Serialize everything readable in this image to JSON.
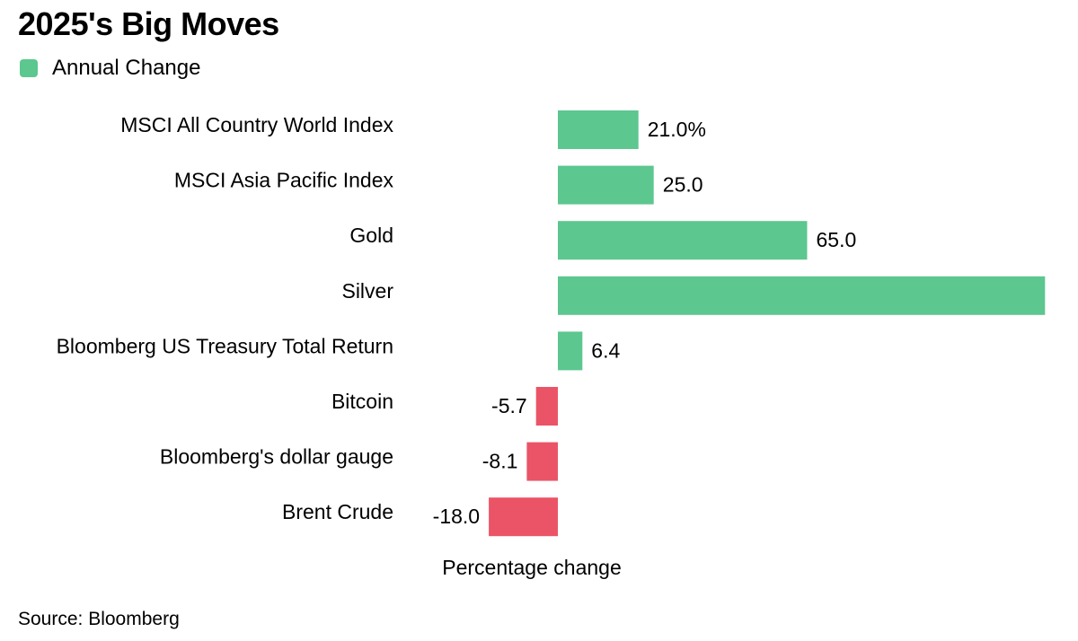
{
  "title": "2025's Big Moves",
  "legend": {
    "label": "Annual Change",
    "color": "#5cc78f"
  },
  "colors": {
    "positive": "#5cc78f",
    "negative": "#eb5466"
  },
  "source": "Source: Bloomberg",
  "chart_data": {
    "type": "bar",
    "orientation": "horizontal",
    "title": "2025's Big Moves",
    "xlabel": "Percentage change",
    "ylabel": "",
    "legend": [
      "Annual Change"
    ],
    "categories": [
      "MSCI All Country World Index",
      "MSCI Asia Pacific Index",
      "Gold",
      "Silver",
      "Bloomberg US Treasury Total Return",
      "Bitcoin",
      "Bloomberg's dollar gauge",
      "Brent Crude"
    ],
    "values": [
      21.0,
      25.0,
      65.0,
      127.0,
      6.4,
      -5.7,
      -8.1,
      -18.0
    ],
    "value_labels": [
      "21.0%",
      "25.0",
      "65.0",
      "",
      "6.4",
      "-5.7",
      "-8.1",
      "-18.0"
    ],
    "xlim": [
      -18.0,
      127.0
    ]
  }
}
